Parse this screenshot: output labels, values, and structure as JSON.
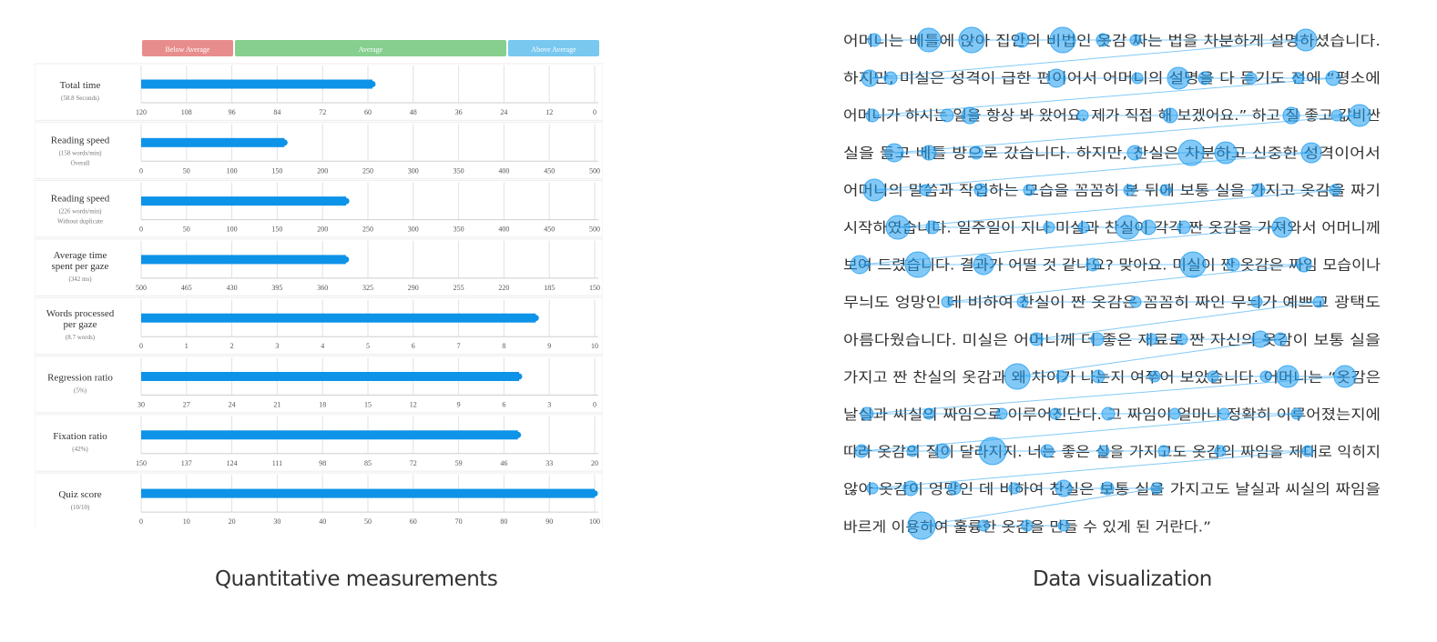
{
  "captions": {
    "left": "Quantitative measurements",
    "right": "Data visualization"
  },
  "colors": {
    "below": "#e88d8d",
    "average": "#86cf8f",
    "above": "#78c8f0",
    "bar": "#0d93e8",
    "fixation": "#1e9cf0",
    "grid": "#e2e2e2"
  },
  "chart_data": [
    {
      "type": "bar",
      "orientation": "horizontal",
      "bands": [
        "Below Average",
        "Average",
        "Above Average"
      ],
      "metrics": [
        {
          "label": [
            "Total time"
          ],
          "sub": [
            "(58.8 Seconds)"
          ],
          "value": 58.8,
          "range": [
            120,
            0
          ],
          "ticks": [
            120,
            108,
            96,
            84,
            72,
            60,
            48,
            36,
            24,
            12,
            0
          ]
        },
        {
          "label": [
            "Reading speed"
          ],
          "sub": [
            "(158 words/min)",
            "Overall"
          ],
          "value": 158,
          "range": [
            0,
            500
          ],
          "ticks": [
            0,
            50,
            100,
            150,
            200,
            250,
            300,
            350,
            400,
            450,
            500
          ]
        },
        {
          "label": [
            "Reading speed"
          ],
          "sub": [
            "(226 words/min)",
            "Without duplicate"
          ],
          "value": 226,
          "range": [
            0,
            500
          ],
          "ticks": [
            0,
            50,
            100,
            150,
            200,
            250,
            300,
            350,
            400,
            450,
            500
          ]
        },
        {
          "label": [
            "Average time",
            "spent per gaze"
          ],
          "sub": [
            "(342 ms)"
          ],
          "value": 342,
          "range": [
            500,
            150
          ],
          "ticks": [
            500,
            465,
            430,
            395,
            360,
            325,
            290,
            255,
            220,
            185,
            150
          ]
        },
        {
          "label": [
            "Words processed",
            "per gaze"
          ],
          "sub": [
            "(8.7 words)"
          ],
          "value": 8.7,
          "range": [
            0,
            10
          ],
          "ticks": [
            0,
            1,
            2,
            3,
            4,
            5,
            6,
            7,
            8,
            9,
            10
          ]
        },
        {
          "label": [
            "Regression ratio"
          ],
          "sub": [
            "(5%)"
          ],
          "value": 5,
          "range": [
            30,
            0
          ],
          "ticks": [
            30,
            27,
            24,
            21,
            18,
            15,
            12,
            9,
            6,
            3,
            0
          ]
        },
        {
          "label": [
            "Fixation ratio"
          ],
          "sub": [
            "(42%)"
          ],
          "value": 42,
          "range": [
            150,
            20
          ],
          "ticks": [
            150,
            137,
            124,
            111,
            98,
            85,
            72,
            59,
            46,
            33,
            20
          ]
        },
        {
          "label": [
            "Quiz score"
          ],
          "sub": [
            "(10/10)"
          ],
          "value": 100,
          "range": [
            0,
            100
          ],
          "ticks": [
            0,
            10,
            20,
            30,
            40,
            50,
            60,
            70,
            80,
            90,
            100
          ]
        }
      ]
    },
    {
      "type": "scatter",
      "text_lines": [
        "어머니는 베틀에 앉아 집안의 비법인 옷감 짜는 법을 차분하게 설명하셨습니다.",
        "하지만, 미실은 성격이 급한 편이어서 어머니의 설명을 다 듣기도 전에 “평소에",
        "어머니가 하시는 일을 항상 봐 왔어요. 제가 직접 해 보겠어요.” 하고 질 좋고 값비싼",
        "실을 들고 베틀 방으로 갔습니다. 하지만, 찬실은 차분하고 신중한 성격이어서",
        "어머니의 말씀과 작업하는 모습을 꼼꼼히 본 뒤에 보통 실을 가지고 옷감을 짜기",
        "시작하였습니다. 일주일이 지나 미실과 찬실이 각각 짠 옷감을 가져와서 어머니께",
        "보여 드렸습니다. 결과가 어떨 것 같나요? 맞아요. 미실이 짠 옷감은 짜임 모습이나",
        "무늬도 엉망인 데 비하여 찬실이 짠 옷감은 꼼꼼히 짜인 무늬가 예쁘고 광택도",
        "아름다웠습니다. 미실은 어머니께 더 좋은 재료로 짠 자신의 옷감이 보통 실을",
        "가지고 짠 찬실의 옷감과 왜 차이가 나는지 여쭈어 보았습니다. 어머니는 “옷감은",
        "날실과 씨실의 짜임으로 이루어진단다. 그 짜임이 얼마나 정확히 이루어졌는지에",
        "따라 옷감의 질이 달라지지. 너는 좋은 실을 가지고도 옷감의 짜임을 제대로 익히지",
        "않아 옷감이 엉망인 데 비하여 찬실은 보통 실을 가지고도 날실과 씨실의 짜임을",
        "바르게 이용하여 훌륭한 옷감을 만들 수 있게 된 거란다.”"
      ],
      "fixations": [
        [
          960,
          44,
          7
        ],
        [
          1020,
          44,
          13
        ],
        [
          1067,
          44,
          14
        ],
        [
          1122,
          44,
          8
        ],
        [
          1167,
          44,
          14
        ],
        [
          1211,
          44,
          7
        ],
        [
          1247,
          44,
          6
        ],
        [
          1434,
          44,
          12
        ],
        [
          955,
          86,
          9
        ],
        [
          978,
          86,
          7
        ],
        [
          1160,
          86,
          10
        ],
        [
          1249,
          86,
          6
        ],
        [
          1294,
          86,
          12
        ],
        [
          1323,
          86,
          7
        ],
        [
          1374,
          86,
          6
        ],
        [
          1426,
          86,
          6
        ],
        [
          1464,
          86,
          8
        ],
        [
          958,
          127,
          7
        ],
        [
          1040,
          127,
          7
        ],
        [
          1065,
          127,
          9
        ],
        [
          1189,
          127,
          6
        ],
        [
          1285,
          127,
          8
        ],
        [
          1418,
          127,
          9
        ],
        [
          1468,
          127,
          6
        ],
        [
          1493,
          127,
          12
        ],
        [
          982,
          168,
          10
        ],
        [
          1020,
          168,
          8
        ],
        [
          1072,
          168,
          7
        ],
        [
          1246,
          168,
          8
        ],
        [
          1308,
          168,
          14
        ],
        [
          1346,
          168,
          12
        ],
        [
          1440,
          168,
          11
        ],
        [
          960,
          209,
          12
        ],
        [
          1016,
          209,
          6
        ],
        [
          1077,
          209,
          7
        ],
        [
          1130,
          209,
          6
        ],
        [
          1240,
          209,
          6
        ],
        [
          1280,
          209,
          6
        ],
        [
          1382,
          209,
          7
        ],
        [
          1466,
          209,
          6
        ],
        [
          986,
          250,
          13
        ],
        [
          1024,
          250,
          7
        ],
        [
          1152,
          250,
          6
        ],
        [
          1190,
          250,
          6
        ],
        [
          1238,
          250,
          13
        ],
        [
          1261,
          250,
          8
        ],
        [
          1300,
          250,
          7
        ],
        [
          1408,
          250,
          11
        ],
        [
          944,
          291,
          10
        ],
        [
          1008,
          291,
          14
        ],
        [
          1080,
          291,
          11
        ],
        [
          1200,
          291,
          7
        ],
        [
          1310,
          291,
          14
        ],
        [
          1354,
          291,
          7
        ],
        [
          1432,
          291,
          8
        ],
        [
          1040,
          332,
          6
        ],
        [
          1123,
          332,
          6
        ],
        [
          1247,
          332,
          6
        ],
        [
          1380,
          332,
          6
        ],
        [
          1448,
          332,
          6
        ],
        [
          1138,
          373,
          7
        ],
        [
          1205,
          373,
          7
        ],
        [
          1265,
          373,
          6
        ],
        [
          1298,
          373,
          6
        ],
        [
          1384,
          373,
          9
        ],
        [
          1406,
          373,
          7
        ],
        [
          1117,
          414,
          14
        ],
        [
          1166,
          414,
          6
        ],
        [
          1206,
          414,
          7
        ],
        [
          1268,
          414,
          6
        ],
        [
          1332,
          414,
          6
        ],
        [
          1390,
          414,
          6
        ],
        [
          1414,
          414,
          12
        ],
        [
          1477,
          414,
          12
        ],
        [
          952,
          455,
          7
        ],
        [
          1020,
          455,
          6
        ],
        [
          1100,
          455,
          6
        ],
        [
          1159,
          455,
          6
        ],
        [
          1217,
          455,
          7
        ],
        [
          1290,
          455,
          6
        ],
        [
          1344,
          455,
          6
        ],
        [
          1424,
          455,
          6
        ],
        [
          946,
          496,
          7
        ],
        [
          1002,
          496,
          6
        ],
        [
          1035,
          496,
          8
        ],
        [
          1090,
          496,
          15
        ],
        [
          1150,
          496,
          7
        ],
        [
          1212,
          496,
          6
        ],
        [
          1278,
          496,
          6
        ],
        [
          1340,
          496,
          6
        ],
        [
          1436,
          496,
          6
        ],
        [
          958,
          537,
          6
        ],
        [
          1000,
          537,
          8
        ],
        [
          1048,
          537,
          7
        ],
        [
          1114,
          537,
          6
        ],
        [
          1168,
          537,
          9
        ],
        [
          1216,
          537,
          7
        ],
        [
          1270,
          537,
          6
        ],
        [
          1012,
          578,
          15
        ],
        [
          1080,
          578,
          6
        ],
        [
          1128,
          578,
          6
        ],
        [
          1168,
          578,
          6
        ]
      ]
    }
  ]
}
